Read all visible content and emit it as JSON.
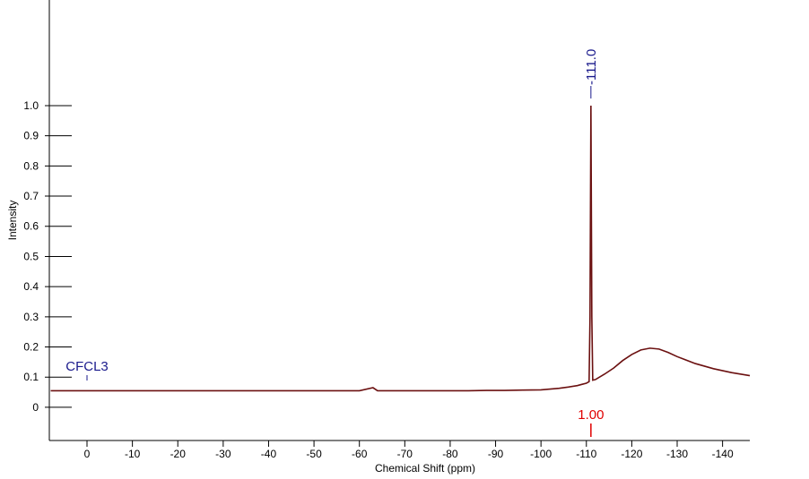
{
  "chart_data": {
    "type": "line",
    "xlabel": "Chemical Shift (ppm)",
    "ylabel": "Intensity",
    "xlim": [
      8.3,
      -146
    ],
    "ylim": [
      -0.11,
      1.35
    ],
    "xticks": [
      0,
      -10,
      -20,
      -30,
      -40,
      -50,
      -60,
      -70,
      -80,
      -90,
      -100,
      -110,
      -120,
      -130,
      -140
    ],
    "yticks": [
      0,
      0.1,
      0.2,
      0.3,
      0.4,
      0.5,
      0.6,
      0.7,
      0.8,
      0.9,
      {
        "value": 1,
        "label": "1.0"
      }
    ],
    "series": [
      {
        "color": "#6b1010",
        "x": [
          8,
          4,
          0,
          -4,
          -8,
          -12,
          -16,
          -20,
          -24,
          -28,
          -32,
          -36,
          -40,
          -44,
          -48,
          -52,
          -56,
          -60,
          -63,
          -64,
          -68,
          -72,
          -76,
          -80,
          -84,
          -88,
          -92,
          -96,
          -100,
          -104,
          -106,
          -108,
          -109,
          -110,
          -110.6,
          -110.8,
          -111.0,
          -111.2,
          -111.4,
          -112,
          -114,
          -116,
          -118,
          -120,
          -122,
          -124,
          -126,
          -128,
          -130,
          -134,
          -138,
          -142,
          -146
        ],
        "values": [
          0.055,
          0.055,
          0.055,
          0.055,
          0.055,
          0.055,
          0.055,
          0.055,
          0.055,
          0.055,
          0.055,
          0.055,
          0.055,
          0.055,
          0.055,
          0.055,
          0.055,
          0.055,
          0.065,
          0.055,
          0.055,
          0.055,
          0.055,
          0.055,
          0.055,
          0.056,
          0.056,
          0.057,
          0.058,
          0.063,
          0.067,
          0.072,
          0.076,
          0.08,
          0.085,
          0.3,
          1.0,
          0.3,
          0.09,
          0.092,
          0.11,
          0.13,
          0.155,
          0.175,
          0.19,
          0.196,
          0.193,
          0.182,
          0.168,
          0.145,
          0.128,
          0.115,
          0.105
        ]
      }
    ],
    "peaks": [
      {
        "value": -111.0,
        "label": "-111.0"
      }
    ],
    "reference": {
      "value": 0,
      "label": "CFCL3"
    },
    "integrals": [
      {
        "x": -111,
        "value": 1,
        "label": "1.00"
      }
    ]
  }
}
